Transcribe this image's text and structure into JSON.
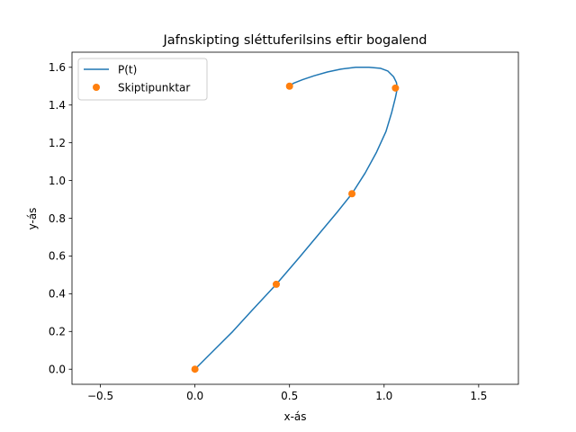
{
  "chart_data": {
    "type": "line",
    "title": "Jafnskipting sléttuferilsins eftir bogalend",
    "xlabel": "x-ás",
    "ylabel": "y-ás",
    "xlim": [
      -0.65,
      1.71
    ],
    "ylim": [
      -0.08,
      1.68
    ],
    "xticks": [
      -0.5,
      0.0,
      0.5,
      1.0,
      1.5
    ],
    "xtick_labels": [
      "−0.5",
      "0.0",
      "0.5",
      "1.0",
      "1.5"
    ],
    "yticks": [
      0.0,
      0.2,
      0.4,
      0.6,
      0.8,
      1.0,
      1.2,
      1.4,
      1.6
    ],
    "ytick_labels": [
      "0.0",
      "0.2",
      "0.4",
      "0.6",
      "0.8",
      "1.0",
      "1.2",
      "1.4",
      "1.6"
    ],
    "grid": false,
    "legend_position": "top-left",
    "series": [
      {
        "name": "P(t)",
        "kind": "line",
        "color": "#1f77b4",
        "x": [
          0.0,
          0.1,
          0.2,
          0.3,
          0.43,
          0.55,
          0.65,
          0.75,
          0.83,
          0.9,
          0.96,
          1.01,
          1.04,
          1.06,
          1.07,
          1.065,
          1.05,
          1.02,
          0.98,
          0.92,
          0.85,
          0.77,
          0.7,
          0.63,
          0.57,
          0.52,
          0.5
        ],
        "y": [
          0.0,
          0.1,
          0.2,
          0.31,
          0.45,
          0.59,
          0.71,
          0.83,
          0.93,
          1.04,
          1.15,
          1.26,
          1.36,
          1.44,
          1.49,
          1.52,
          1.55,
          1.58,
          1.595,
          1.6,
          1.6,
          1.59,
          1.575,
          1.555,
          1.535,
          1.515,
          1.5
        ]
      },
      {
        "name": "Skiptipunktar",
        "kind": "scatter",
        "color": "#ff7f0e",
        "x": [
          0.0,
          0.43,
          0.83,
          1.06,
          0.5
        ],
        "y": [
          0.0,
          0.45,
          0.93,
          1.49,
          1.5
        ]
      }
    ]
  }
}
